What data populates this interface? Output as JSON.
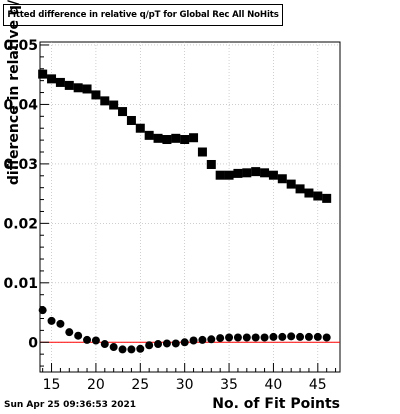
{
  "title": "Fitted difference in relative q/pT  for Global Rec All NoHits",
  "timestamp": "Sun Apr 25 09:36:53 2021",
  "chart_data": {
    "type": "scatter",
    "title": "Fitted difference in relative q/pT  for Global Rec All NoHits",
    "xlabel": "No. of Fit Points",
    "ylabel": "difference in relative q/p",
    "xlim": [
      13.7,
      47.5
    ],
    "ylim": [
      -0.005,
      0.0505
    ],
    "xticks": [
      15,
      20,
      25,
      30,
      35,
      40,
      45
    ],
    "yticks": [
      0,
      0.01,
      0.02,
      0.03,
      0.04,
      0.05
    ],
    "ytick_labels": [
      "0",
      "0.01",
      "0.02",
      "0.03",
      "0.04",
      "0.05"
    ],
    "reference_line": {
      "y": 0,
      "color": "#ff0000"
    },
    "series": [
      {
        "marker": "square",
        "x": [
          14,
          15,
          16,
          17,
          18,
          19,
          20,
          21,
          22,
          23,
          24,
          25,
          26,
          27,
          28,
          29,
          30,
          31,
          32,
          33,
          34,
          35,
          36,
          37,
          38,
          39,
          40,
          41,
          42,
          43,
          44,
          45,
          46
        ],
        "y": [
          0.0451,
          0.0443,
          0.0437,
          0.0432,
          0.0428,
          0.0426,
          0.0416,
          0.0406,
          0.0399,
          0.0388,
          0.0373,
          0.036,
          0.0348,
          0.0343,
          0.0341,
          0.0343,
          0.0341,
          0.0344,
          0.032,
          0.0299,
          0.0281,
          0.0281,
          0.0284,
          0.0285,
          0.0287,
          0.0285,
          0.0281,
          0.0275,
          0.0266,
          0.0258,
          0.0251,
          0.0246,
          0.0242
        ]
      },
      {
        "marker": "circle",
        "x": [
          14,
          15,
          16,
          17,
          18,
          19,
          20,
          21,
          22,
          23,
          24,
          25,
          26,
          27,
          28,
          29,
          30,
          31,
          32,
          33,
          34,
          35,
          36,
          37,
          38,
          39,
          40,
          41,
          42,
          43,
          44,
          45,
          46
        ],
        "y": [
          0.0054,
          0.0036,
          0.0031,
          0.0017,
          0.0011,
          0.0004,
          0.0003,
          -0.0003,
          -0.0008,
          -0.0012,
          -0.0012,
          -0.0011,
          -0.0005,
          -0.0003,
          -0.0002,
          -0.0002,
          0.0,
          0.0003,
          0.0004,
          0.0005,
          0.0007,
          0.0008,
          0.0008,
          0.0008,
          0.0008,
          0.0008,
          0.0009,
          0.0009,
          0.001,
          0.0009,
          0.0009,
          0.0009,
          0.0008
        ]
      }
    ]
  }
}
